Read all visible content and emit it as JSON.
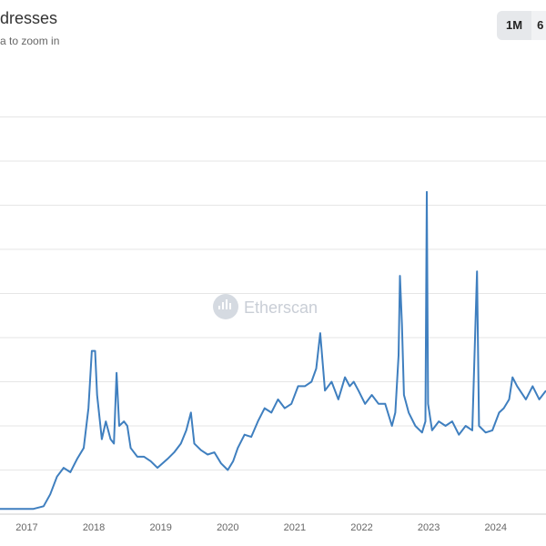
{
  "header": {
    "title": "dresses",
    "subtitle": "a to zoom in",
    "range_buttons": [
      "1M",
      "6"
    ],
    "watermark": "Etherscan"
  },
  "colors": {
    "series": "#3f7fbf",
    "grid": "#e6e6e6",
    "watermark": "#c9ced6"
  },
  "chart_data": {
    "type": "line",
    "title": "dresses",
    "subtitle": "a to zoom in",
    "xlabel": "",
    "ylabel": "",
    "grid": true,
    "x_tick_labels": [
      "2017",
      "2018",
      "2019",
      "2020",
      "2021",
      "2022",
      "2023",
      "2024"
    ],
    "x_range": [
      2016.6,
      2024.75
    ],
    "y_range": [
      0,
      10
    ],
    "y_gridlines": [
      1,
      2,
      3,
      4,
      5,
      6,
      7,
      8,
      9
    ],
    "series": [
      {
        "points": [
          [
            2016.6,
            0.12
          ],
          [
            2016.9,
            0.12
          ],
          [
            2017.1,
            0.12
          ],
          [
            2017.25,
            0.18
          ],
          [
            2017.35,
            0.45
          ],
          [
            2017.45,
            0.85
          ],
          [
            2017.55,
            1.05
          ],
          [
            2017.65,
            0.95
          ],
          [
            2017.75,
            1.25
          ],
          [
            2017.85,
            1.5
          ],
          [
            2017.92,
            2.4
          ],
          [
            2017.97,
            3.7
          ],
          [
            2018.02,
            3.7
          ],
          [
            2018.05,
            2.7
          ],
          [
            2018.12,
            1.7
          ],
          [
            2018.18,
            2.1
          ],
          [
            2018.25,
            1.7
          ],
          [
            2018.3,
            1.6
          ],
          [
            2018.34,
            3.2
          ],
          [
            2018.38,
            2.0
          ],
          [
            2018.45,
            2.1
          ],
          [
            2018.5,
            2.0
          ],
          [
            2018.55,
            1.5
          ],
          [
            2018.65,
            1.3
          ],
          [
            2018.75,
            1.3
          ],
          [
            2018.85,
            1.2
          ],
          [
            2018.95,
            1.05
          ],
          [
            2019.1,
            1.25
          ],
          [
            2019.2,
            1.4
          ],
          [
            2019.3,
            1.6
          ],
          [
            2019.38,
            1.9
          ],
          [
            2019.45,
            2.3
          ],
          [
            2019.5,
            1.6
          ],
          [
            2019.6,
            1.45
          ],
          [
            2019.7,
            1.35
          ],
          [
            2019.8,
            1.4
          ],
          [
            2019.9,
            1.15
          ],
          [
            2020.0,
            1.0
          ],
          [
            2020.08,
            1.2
          ],
          [
            2020.15,
            1.5
          ],
          [
            2020.25,
            1.8
          ],
          [
            2020.35,
            1.75
          ],
          [
            2020.45,
            2.1
          ],
          [
            2020.55,
            2.4
          ],
          [
            2020.65,
            2.3
          ],
          [
            2020.75,
            2.6
          ],
          [
            2020.85,
            2.4
          ],
          [
            2020.95,
            2.5
          ],
          [
            2021.05,
            2.9
          ],
          [
            2021.15,
            2.9
          ],
          [
            2021.25,
            3.0
          ],
          [
            2021.32,
            3.3
          ],
          [
            2021.38,
            4.1
          ],
          [
            2021.45,
            2.8
          ],
          [
            2021.55,
            3.0
          ],
          [
            2021.65,
            2.6
          ],
          [
            2021.75,
            3.1
          ],
          [
            2021.82,
            2.9
          ],
          [
            2021.88,
            3.0
          ],
          [
            2021.95,
            2.8
          ],
          [
            2022.05,
            2.5
          ],
          [
            2022.15,
            2.7
          ],
          [
            2022.25,
            2.5
          ],
          [
            2022.35,
            2.5
          ],
          [
            2022.45,
            2.0
          ],
          [
            2022.5,
            2.3
          ],
          [
            2022.55,
            3.6
          ],
          [
            2022.57,
            5.4
          ],
          [
            2022.6,
            4.3
          ],
          [
            2022.63,
            2.7
          ],
          [
            2022.7,
            2.3
          ],
          [
            2022.8,
            2.0
          ],
          [
            2022.9,
            1.85
          ],
          [
            2022.95,
            2.1
          ],
          [
            2022.97,
            7.3
          ],
          [
            2022.99,
            2.5
          ],
          [
            2023.05,
            1.9
          ],
          [
            2023.15,
            2.1
          ],
          [
            2023.25,
            2.0
          ],
          [
            2023.35,
            2.1
          ],
          [
            2023.45,
            1.8
          ],
          [
            2023.55,
            2.0
          ],
          [
            2023.65,
            1.9
          ],
          [
            2023.72,
            5.5
          ],
          [
            2023.75,
            2.0
          ],
          [
            2023.85,
            1.85
          ],
          [
            2023.95,
            1.9
          ],
          [
            2024.05,
            2.3
          ],
          [
            2024.12,
            2.4
          ],
          [
            2024.2,
            2.6
          ],
          [
            2024.25,
            3.1
          ],
          [
            2024.32,
            2.9
          ],
          [
            2024.45,
            2.6
          ],
          [
            2024.55,
            2.9
          ],
          [
            2024.65,
            2.6
          ],
          [
            2024.75,
            2.8
          ]
        ]
      }
    ]
  }
}
